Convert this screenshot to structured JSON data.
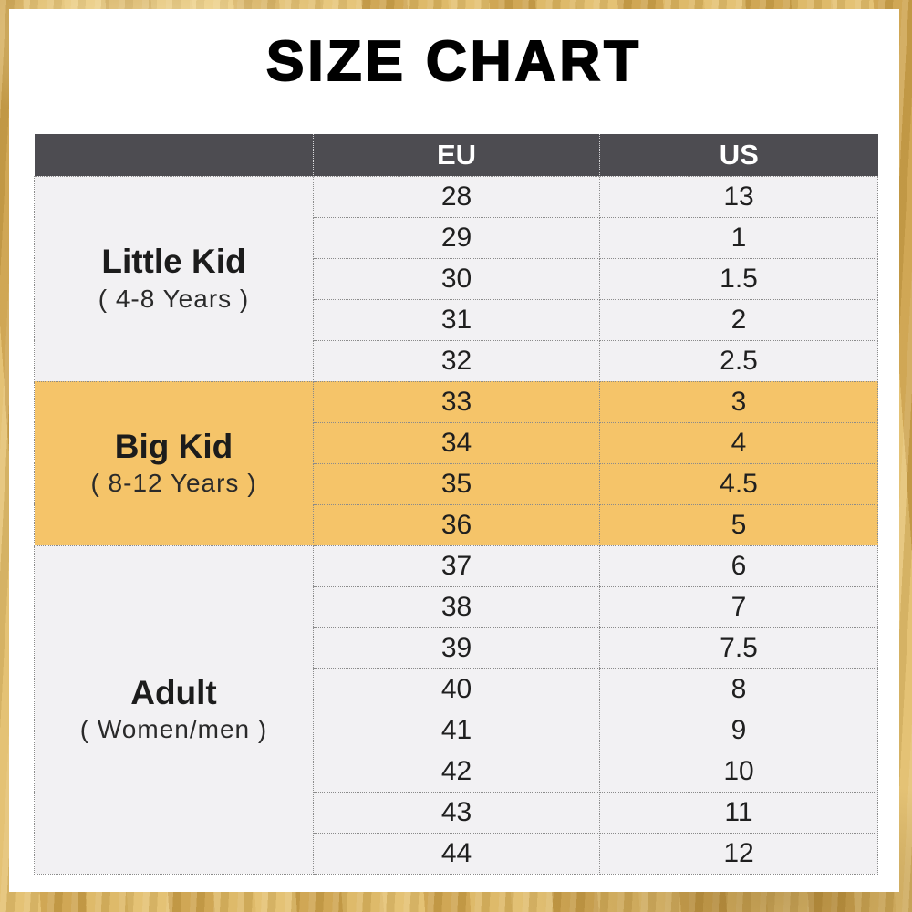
{
  "title": "SIZE CHART",
  "chart_data": {
    "type": "table",
    "title": "SIZE CHART",
    "columns": [
      "",
      "EU",
      "US"
    ],
    "groups": [
      {
        "label": "Little Kid",
        "sublabel": "( 4-8 Years )",
        "highlighted": false,
        "rows": [
          {
            "eu": "28",
            "us": "13"
          },
          {
            "eu": "29",
            "us": "1"
          },
          {
            "eu": "30",
            "us": "1.5"
          },
          {
            "eu": "31",
            "us": "2"
          },
          {
            "eu": "32",
            "us": "2.5"
          }
        ]
      },
      {
        "label": "Big Kid",
        "sublabel": "( 8-12 Years )",
        "highlighted": true,
        "rows": [
          {
            "eu": "33",
            "us": "3"
          },
          {
            "eu": "34",
            "us": "4"
          },
          {
            "eu": "35",
            "us": "4.5"
          },
          {
            "eu": "36",
            "us": "5"
          }
        ]
      },
      {
        "label": "Adult",
        "sublabel": "( Women/men )",
        "highlighted": false,
        "rows": [
          {
            "eu": "37",
            "us": "6"
          },
          {
            "eu": "38",
            "us": "7"
          },
          {
            "eu": "39",
            "us": "7.5"
          },
          {
            "eu": "40",
            "us": "8"
          },
          {
            "eu": "41",
            "us": "9"
          },
          {
            "eu": "42",
            "us": "10"
          },
          {
            "eu": "43",
            "us": "11"
          },
          {
            "eu": "44",
            "us": "12"
          }
        ]
      }
    ],
    "layout": {
      "legend": "none",
      "grid": "dotted",
      "highlight_rows": "Big Kid group"
    }
  },
  "colors": {
    "header_bg": "#4d4c51",
    "header_text": "#ffffff",
    "row_bg": "#f2f1f3",
    "highlight_bg": "#f5c469",
    "text": "#1f1f1f",
    "grid_dotted": "#8b8b8b",
    "card_bg": "#ffffff",
    "gold_frame": "#d5ac59"
  }
}
